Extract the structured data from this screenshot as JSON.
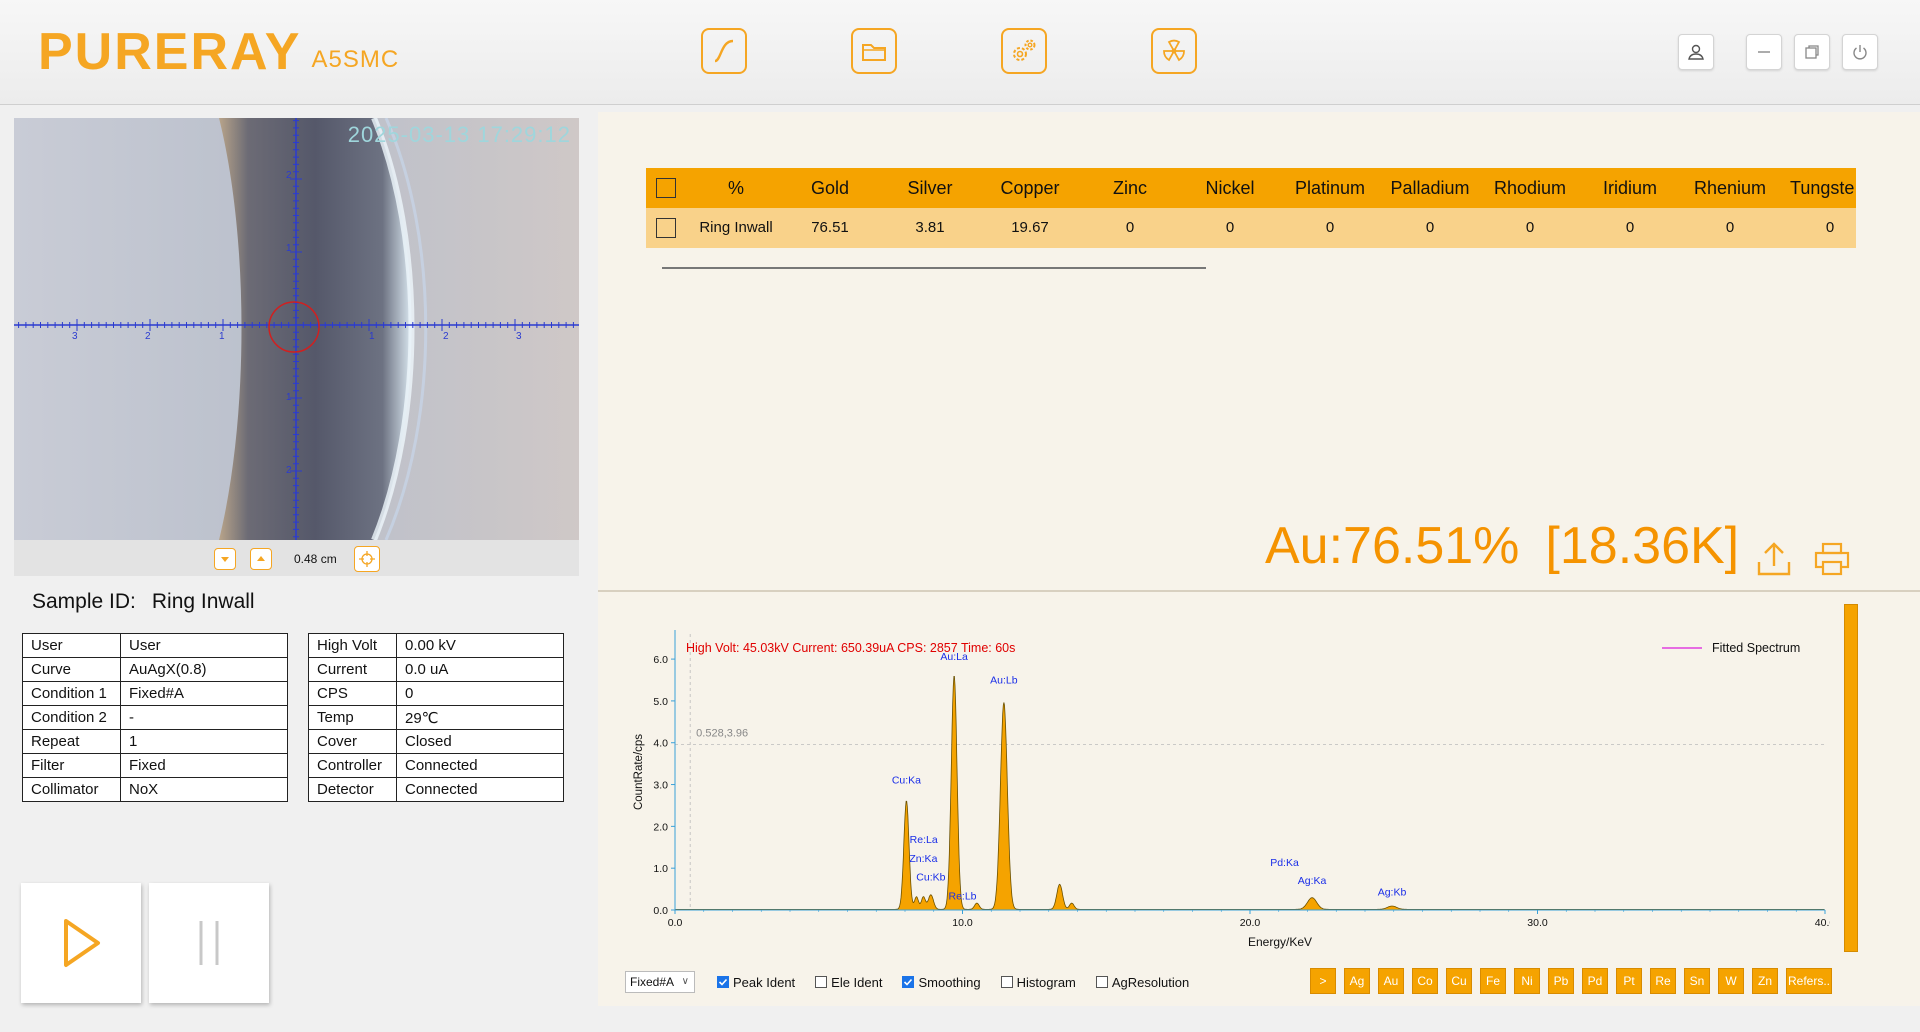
{
  "app": {
    "brand": "PURERAY",
    "model": "A5SMC"
  },
  "header": {
    "nav_buttons": [
      {
        "icon": "curve-icon"
      },
      {
        "icon": "folder-icon"
      },
      {
        "icon": "gears-icon"
      },
      {
        "icon": "radiation-icon"
      }
    ],
    "window_buttons": [
      "user-icon",
      "minimize-icon",
      "restore-icon",
      "power-icon"
    ]
  },
  "camera": {
    "timestamp": "2025-03-13 17:29:12",
    "scale_label": "0.48 cm",
    "ruler_labels": [
      "3",
      "2",
      "1",
      "1",
      "2",
      "3",
      "2",
      "1",
      "1",
      "2"
    ]
  },
  "sample": {
    "label": "Sample ID:",
    "value": "Ring Inwall"
  },
  "info_left": [
    {
      "key": "User",
      "value": "User"
    },
    {
      "key": "Curve",
      "value": "AuAgX(0.8)"
    },
    {
      "key": "Condition 1",
      "value": "Fixed#A"
    },
    {
      "key": "Condition 2",
      "value": "-"
    },
    {
      "key": "Repeat",
      "value": "1"
    },
    {
      "key": "Filter",
      "value": "Fixed"
    },
    {
      "key": "Collimator",
      "value": "NoX"
    }
  ],
  "info_right": [
    {
      "key": "High Volt",
      "value": "0.00 kV"
    },
    {
      "key": "Current",
      "value": "0.0 uA"
    },
    {
      "key": "CPS",
      "value": "0"
    },
    {
      "key": "Temp",
      "value": "29℃"
    },
    {
      "key": "Cover",
      "value": "Closed"
    },
    {
      "key": "Controller",
      "value": "Connected"
    },
    {
      "key": "Detector",
      "value": "Connected"
    }
  ],
  "results": {
    "headers": [
      "%",
      "Gold",
      "Silver",
      "Copper",
      "Zinc",
      "Nickel",
      "Platinum",
      "Palladium",
      "Rhodium",
      "Iridium",
      "Rhenium",
      "Tungste"
    ],
    "rows": [
      [
        "Ring Inwall",
        "76.51",
        "3.81",
        "19.67",
        "0",
        "0",
        "0",
        "0",
        "0",
        "0",
        "0",
        "0"
      ]
    ]
  },
  "summary": {
    "element_value": "Au:76.51%",
    "karat": "[18.36K]"
  },
  "spectrum": {
    "info_line": "High Volt: 45.03kV  Current: 650.39uA  CPS: 2857  Time: 60s",
    "cursor_label": "0.528,3.96",
    "legend": "Fitted Spectrum",
    "legend_color": "#e040e0",
    "fill_color": "#f5a300",
    "peak_label_color": "#1a2ee8",
    "info_color": "#e00000",
    "chart_data": {
      "type": "area",
      "xlabel": "Energy/KeV",
      "ylabel": "CountRate/cps",
      "xlim": [
        0,
        40
      ],
      "ylim": [
        0,
        6.6
      ],
      "x_ticks": [
        "0.0",
        "10.0",
        "20.0",
        "30.0",
        "40.0"
      ],
      "y_ticks": [
        "0.0",
        "1.0",
        "2.0",
        "3.0",
        "4.0",
        "5.0",
        "6.0"
      ],
      "peaks": [
        {
          "x": 8.05,
          "height": 2.6,
          "width": 0.09
        },
        {
          "x": 8.4,
          "height": 0.3,
          "width": 0.07
        },
        {
          "x": 8.64,
          "height": 0.3,
          "width": 0.07
        },
        {
          "x": 8.9,
          "height": 0.35,
          "width": 0.09
        },
        {
          "x": 9.71,
          "height": 5.6,
          "width": 0.1
        },
        {
          "x": 10.5,
          "height": 0.15,
          "width": 0.08
        },
        {
          "x": 11.44,
          "height": 4.95,
          "width": 0.12
        },
        {
          "x": 13.38,
          "height": 0.6,
          "width": 0.1
        },
        {
          "x": 13.8,
          "height": 0.15,
          "width": 0.08
        },
        {
          "x": 22.16,
          "height": 0.28,
          "width": 0.16
        },
        {
          "x": 24.94,
          "height": 0.08,
          "width": 0.16
        }
      ],
      "peak_labels": [
        {
          "text": "Au:La",
          "x": 9.71,
          "y": 5.98
        },
        {
          "text": "Au:Lb",
          "x": 11.44,
          "y": 5.42
        },
        {
          "text": "Cu:Ka",
          "x": 8.05,
          "y": 3.02
        },
        {
          "text": "Re:La",
          "x": 8.65,
          "y": 1.6
        },
        {
          "text": "Zn:Ka",
          "x": 8.64,
          "y": 1.15
        },
        {
          "text": "Cu:Kb",
          "x": 8.9,
          "y": 0.7
        },
        {
          "text": "Re:Lb",
          "x": 10.0,
          "y": 0.25
        },
        {
          "text": "Pd:Ka",
          "x": 21.2,
          "y": 1.05
        },
        {
          "text": "Ag:Ka",
          "x": 22.16,
          "y": 0.62
        },
        {
          "text": "Ag:Kb",
          "x": 24.94,
          "y": 0.35
        }
      ],
      "cursor": {
        "x": 0.528,
        "y": 3.96
      }
    }
  },
  "footer": {
    "condition_select": "Fixed#A",
    "checkboxes": [
      {
        "label": "Peak Ident",
        "checked": true
      },
      {
        "label": "Ele Ident",
        "checked": false
      },
      {
        "label": "Smoothing",
        "checked": true
      },
      {
        "label": "Histogram",
        "checked": false
      },
      {
        "label": "AgResolution",
        "checked": false
      }
    ],
    "element_buttons": [
      ">",
      "Ag",
      "Au",
      "Co",
      "Cu",
      "Fe",
      "Ni",
      "Pb",
      "Pd",
      "Pt",
      "Re",
      "Sn",
      "W",
      "Zn"
    ],
    "refers_button": "Refers.."
  }
}
